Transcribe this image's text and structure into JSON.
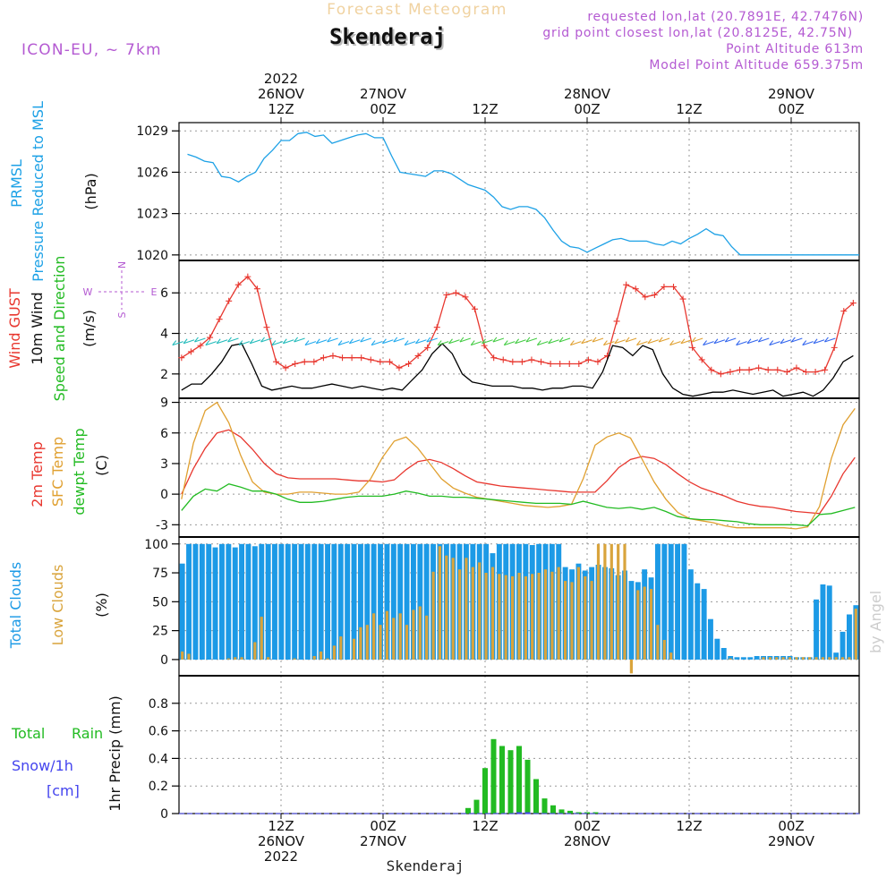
{
  "header": {
    "subtitle": "Forecast Meteogram",
    "title": "Skenderaj",
    "model": "ICON-EU, ~ 7km",
    "requested": "requested lon,lat (20.7891E, 42.7476N)",
    "grid_point": "grid point closest lon,lat (20.8125E, 42.75N)",
    "point_alt": "Point Altitude 613m",
    "model_alt": "Model Point Altitude 659.375m",
    "credit": "by Angel",
    "bottom_label": "Skenderaj"
  },
  "colors": {
    "prmsl": "#1da1e6",
    "gust": "#e8372f",
    "wind": "#000000",
    "wind_dir": "#22bb22",
    "t2m": "#e8372f",
    "sfc": "#e0a030",
    "dew": "#22bb22",
    "total_clouds": "#1c9ae6",
    "low_clouds": "#d9a43c",
    "rain": "#22bb22",
    "snow": "#4444ee",
    "purple": "#b45ad2"
  },
  "time_axis": {
    "top": [
      {
        "h": 12,
        "lines": [
          "2022",
          "26NOV",
          "12Z"
        ]
      },
      {
        "h": 24,
        "lines": [
          "27NOV",
          "00Z"
        ]
      },
      {
        "h": 36,
        "lines": [
          "12Z"
        ]
      },
      {
        "h": 48,
        "lines": [
          "28NOV",
          "00Z"
        ]
      },
      {
        "h": 60,
        "lines": [
          "12Z"
        ]
      },
      {
        "h": 72,
        "lines": [
          "29NOV",
          "00Z"
        ]
      }
    ],
    "bottom": [
      {
        "h": 12,
        "lines": [
          "12Z",
          "26NOV",
          "2022"
        ]
      },
      {
        "h": 24,
        "lines": [
          "00Z",
          "27NOV"
        ]
      },
      {
        "h": 36,
        "lines": [
          "12Z"
        ]
      },
      {
        "h": 48,
        "lines": [
          "00Z",
          "28NOV"
        ]
      },
      {
        "h": 60,
        "lines": [
          "12Z"
        ]
      },
      {
        "h": 72,
        "lines": [
          "00Z",
          "29NOV"
        ]
      }
    ]
  },
  "panels": {
    "pressure": {
      "labels": {
        "a": "PRMSL",
        "b": "Pressure Reduced to MSL",
        "unit": "(hPa)"
      },
      "ticks": [
        "1020",
        "1023",
        "1026",
        "1029"
      ]
    },
    "wind": {
      "labels": {
        "a": "Wind GUST",
        "b": "10m Wind",
        "c": "Speed and Direction",
        "unit": "(m/s)",
        "compass_n": "N",
        "compass_s": "S",
        "compass_w": "W",
        "compass_e": "E"
      },
      "ticks": [
        "2",
        "4",
        "6"
      ]
    },
    "temp": {
      "labels": {
        "a": "2m Temp",
        "b": "SFC Temp",
        "c": "dewpt Temp",
        "unit": "(C)"
      },
      "ticks": [
        "-3",
        "0",
        "3",
        "6",
        "9"
      ]
    },
    "clouds": {
      "labels": {
        "a": "Total Clouds",
        "b": "Low Clouds",
        "unit": "(%)"
      },
      "ticks": [
        "0",
        "25",
        "50",
        "75",
        "100"
      ]
    },
    "precip": {
      "labels": {
        "a": "Total",
        "a2": "Rain",
        "b": "Snow/1h",
        "c": "[cm]",
        "unit": "1hr Precip (mm)"
      },
      "ticks": [
        "0",
        "0.2",
        "0.4",
        "0.6",
        "0.8"
      ]
    }
  },
  "chart_data": [
    {
      "type": "line",
      "title": "PRMSL Pressure Reduced to MSL",
      "ylabel": "(hPa)",
      "ylim": [
        1019.6,
        1029.6
      ],
      "x_unit": "hours since 2022-11-26 00Z",
      "series": [
        {
          "name": "PRMSL",
          "x": [
            1,
            2,
            3,
            4,
            5,
            6,
            7,
            8,
            9,
            10,
            11,
            12,
            13,
            14,
            15,
            16,
            17,
            18,
            19,
            20,
            21,
            22,
            23,
            24,
            25,
            26,
            27,
            28,
            29,
            30,
            31,
            32,
            33,
            34,
            35,
            36,
            37,
            38,
            39,
            40,
            41,
            42,
            43,
            44,
            45,
            46,
            47,
            48,
            49,
            50,
            51,
            52,
            53,
            54,
            55,
            56,
            57,
            58,
            59,
            60,
            61,
            62,
            63,
            64,
            65,
            66,
            67,
            68,
            69,
            70,
            71,
            72,
            73,
            74,
            75,
            76,
            77,
            78,
            79,
            80
          ],
          "values": [
            1027.3,
            1027.1,
            1026.8,
            1026.7,
            1025.7,
            1025.6,
            1025.3,
            1025.7,
            1026.0,
            1027.0,
            1027.6,
            1028.3,
            1028.3,
            1028.8,
            1028.9,
            1028.6,
            1028.7,
            1028.1,
            1028.3,
            1028.5,
            1028.7,
            1028.8,
            1028.5,
            1028.5,
            1027.2,
            1026.0,
            1025.9,
            1025.8,
            1025.7,
            1026.1,
            1026.1,
            1025.9,
            1025.5,
            1025.1,
            1024.9,
            1024.7,
            1024.2,
            1023.5,
            1023.3,
            1023.5,
            1023.5,
            1023.3,
            1022.7,
            1021.8,
            1021.0,
            1020.6,
            1020.5,
            1020.2,
            1020.5,
            1020.8,
            1021.1,
            1021.2,
            1021.0,
            1021.0,
            1021.0,
            1020.8,
            1020.7,
            1021.0,
            1020.8,
            1021.2,
            1021.5,
            1021.9,
            1021.5,
            1021.4,
            1020.6,
            1020.0,
            1020.0,
            1020.0,
            1020.0,
            1020.0,
            1020.0,
            1020.0,
            1020.0,
            1020.0,
            1020.0,
            1020.0,
            1020.0,
            1020.0,
            1020.0,
            1020.0
          ]
        }
      ]
    },
    {
      "type": "line",
      "title": "Wind GUST, 10m Wind Speed and Direction",
      "ylabel": "(m/s)",
      "ylim": [
        0.8,
        7.6
      ],
      "x_unit": "hours since 2022-11-26 00Z",
      "series": [
        {
          "name": "Wind GUST",
          "values": [
            2.8,
            3.1,
            3.4,
            3.8,
            4.7,
            5.6,
            6.4,
            6.8,
            6.2,
            4.3,
            2.6,
            2.3,
            2.5,
            2.6,
            2.6,
            2.8,
            2.9,
            2.8,
            2.8,
            2.8,
            2.7,
            2.6,
            2.6,
            2.3,
            2.5,
            2.9,
            3.3,
            4.3,
            5.9,
            6.0,
            5.8,
            5.2,
            3.4,
            2.8,
            2.7,
            2.6,
            2.6,
            2.7,
            2.6,
            2.5,
            2.5,
            2.5,
            2.5,
            2.7,
            2.6,
            2.9,
            4.6,
            6.4,
            6.2,
            5.8,
            5.9,
            6.3,
            6.3,
            5.7,
            3.3,
            2.7,
            2.2,
            2.0,
            2.1,
            2.2,
            2.2,
            2.3,
            2.2,
            2.2,
            2.1,
            2.3,
            2.1,
            2.1,
            2.2,
            3.3,
            5.1,
            5.5
          ]
        },
        {
          "name": "10m Wind",
          "values": [
            1.2,
            1.5,
            1.5,
            2.0,
            2.6,
            3.4,
            3.5,
            2.5,
            1.4,
            1.2,
            1.3,
            1.4,
            1.3,
            1.3,
            1.4,
            1.5,
            1.4,
            1.3,
            1.4,
            1.3,
            1.2,
            1.3,
            1.2,
            1.7,
            2.2,
            3.0,
            3.5,
            3.0,
            2.0,
            1.6,
            1.5,
            1.4,
            1.4,
            1.4,
            1.3,
            1.3,
            1.2,
            1.3,
            1.3,
            1.4,
            1.4,
            1.3,
            2.1,
            3.4,
            3.3,
            2.9,
            3.4,
            3.2,
            2.0,
            1.3,
            1.0,
            0.9,
            1.0,
            1.1,
            1.1,
            1.2,
            1.1,
            1.0,
            1.1,
            1.2,
            0.9,
            1.0,
            1.1,
            0.9,
            1.2,
            1.8,
            2.6,
            2.9
          ]
        }
      ]
    },
    {
      "type": "line",
      "title": "2m Temp, SFC Temp, dewpt Temp",
      "ylabel": "(C)",
      "ylim": [
        -4.2,
        9.4
      ],
      "x_unit": "hours since 2022-11-26 00Z",
      "series": [
        {
          "name": "2m Temp",
          "values": [
            0.0,
            2.5,
            4.5,
            6.0,
            6.3,
            5.6,
            4.4,
            3.0,
            2.0,
            1.6,
            1.5,
            1.5,
            1.5,
            1.5,
            1.4,
            1.3,
            1.3,
            1.2,
            1.4,
            2.4,
            3.2,
            3.4,
            3.1,
            2.5,
            1.8,
            1.2,
            1.0,
            0.8,
            0.7,
            0.6,
            0.5,
            0.4,
            0.3,
            0.2,
            0.2,
            0.2,
            1.3,
            2.6,
            3.4,
            3.7,
            3.5,
            2.9,
            2.0,
            1.2,
            0.6,
            0.2,
            -0.2,
            -0.7,
            -1.0,
            -1.2,
            -1.3,
            -1.5,
            -1.7,
            -1.8,
            -1.9,
            -0.2,
            2.0,
            3.6
          ]
        },
        {
          "name": "SFC Temp",
          "values": [
            -0.5,
            5.0,
            8.2,
            9.0,
            7.0,
            3.8,
            1.2,
            0.2,
            0.0,
            0.0,
            0.2,
            0.2,
            0.1,
            0.0,
            0.0,
            0.2,
            1.5,
            3.6,
            5.2,
            5.6,
            4.5,
            3.0,
            1.5,
            0.6,
            0.1,
            -0.3,
            -0.5,
            -0.7,
            -0.9,
            -1.1,
            -1.2,
            -1.3,
            -1.2,
            -1.0,
            1.5,
            4.8,
            5.6,
            6.0,
            5.5,
            3.4,
            1.2,
            -0.5,
            -1.8,
            -2.4,
            -2.6,
            -2.8,
            -3.1,
            -3.3,
            -3.3,
            -3.3,
            -3.3,
            -3.3,
            -3.4,
            -3.2,
            -1.2,
            3.5,
            6.8,
            8.4
          ]
        },
        {
          "name": "dewpt Temp",
          "values": [
            -1.6,
            -0.2,
            0.5,
            0.3,
            1.0,
            0.7,
            0.3,
            0.3,
            0.0,
            -0.5,
            -0.8,
            -0.8,
            -0.7,
            -0.5,
            -0.3,
            -0.2,
            -0.2,
            -0.2,
            0.0,
            0.3,
            0.1,
            -0.2,
            -0.2,
            -0.3,
            -0.3,
            -0.4,
            -0.5,
            -0.6,
            -0.7,
            -0.8,
            -0.9,
            -0.9,
            -0.9,
            -1.0,
            -0.7,
            -1.0,
            -1.3,
            -1.4,
            -1.3,
            -1.5,
            -1.3,
            -1.7,
            -2.2,
            -2.4,
            -2.5,
            -2.5,
            -2.6,
            -2.7,
            -2.9,
            -3.0,
            -3.0,
            -3.0,
            -3.0,
            -3.1,
            -2.0,
            -1.9,
            -1.6,
            -1.3
          ]
        }
      ]
    },
    {
      "type": "bar",
      "title": "Total Clouds, Low Clouds",
      "ylabel": "(%)",
      "ylim": [
        -14,
        106
      ],
      "x_unit": "hours since 2022-11-26 00Z",
      "series": [
        {
          "name": "Total Clouds",
          "values": [
            83,
            100,
            100,
            100,
            100,
            97,
            100,
            100,
            97,
            100,
            100,
            98,
            100,
            100,
            100,
            100,
            100,
            100,
            100,
            100,
            100,
            100,
            100,
            100,
            100,
            100,
            100,
            100,
            100,
            100,
            100,
            100,
            100,
            100,
            100,
            100,
            100,
            100,
            100,
            100,
            100,
            100,
            100,
            100,
            100,
            100,
            100,
            92,
            100,
            100,
            100,
            100,
            100,
            99,
            100,
            100,
            100,
            100,
            80,
            78,
            83,
            77,
            80,
            82,
            80,
            79,
            73,
            77,
            68,
            67,
            78,
            71,
            100,
            100,
            100,
            100,
            100,
            78,
            66,
            61,
            35,
            18,
            10,
            3,
            2,
            2,
            2,
            3,
            3,
            3,
            3,
            3,
            3,
            2,
            2,
            2,
            52,
            65,
            64,
            6,
            24,
            39,
            47
          ]
        },
        {
          "name": "Low Clouds",
          "values": [
            7,
            5,
            0,
            0,
            0,
            0,
            0,
            1,
            2,
            2,
            0,
            15,
            37,
            2,
            0,
            0,
            0,
            1,
            0,
            0,
            3,
            7,
            1,
            12,
            20,
            0,
            18,
            28,
            30,
            40,
            30,
            42,
            36,
            40,
            30,
            43,
            46,
            38,
            76,
            98,
            90,
            88,
            78,
            88,
            80,
            84,
            75,
            80,
            74,
            73,
            72,
            75,
            72,
            74,
            75,
            78,
            76,
            80,
            68,
            67,
            80,
            72,
            68,
            100,
            100,
            100,
            100,
            100,
            -12,
            60,
            63,
            61,
            30,
            17,
            6,
            0,
            0,
            0,
            0,
            0,
            0,
            0,
            0,
            1,
            0,
            0,
            0,
            0,
            2,
            2,
            2,
            2,
            2,
            2,
            2,
            2,
            2,
            2,
            2,
            2,
            2,
            2,
            44
          ]
        }
      ]
    },
    {
      "type": "bar",
      "title": "1hr Precip (mm)",
      "ylabel": "1hr Precip (mm)",
      "ylim": [
        0,
        1.0
      ],
      "x_unit": "hours since 2022-11-26 00Z",
      "series": [
        {
          "name": "Total Rain",
          "x": [
            34,
            35,
            36,
            37,
            38,
            39,
            40,
            41,
            42,
            43,
            44,
            45,
            46,
            47,
            48,
            49
          ],
          "values": [
            0.04,
            0.1,
            0.33,
            0.54,
            0.49,
            0.46,
            0.49,
            0.39,
            0.25,
            0.11,
            0.06,
            0.03,
            0.02,
            0.01,
            0.01,
            0.01
          ]
        },
        {
          "name": "Snow/1h",
          "x": [
            40,
            41
          ],
          "values": [
            0.01,
            0.01
          ]
        }
      ]
    }
  ]
}
